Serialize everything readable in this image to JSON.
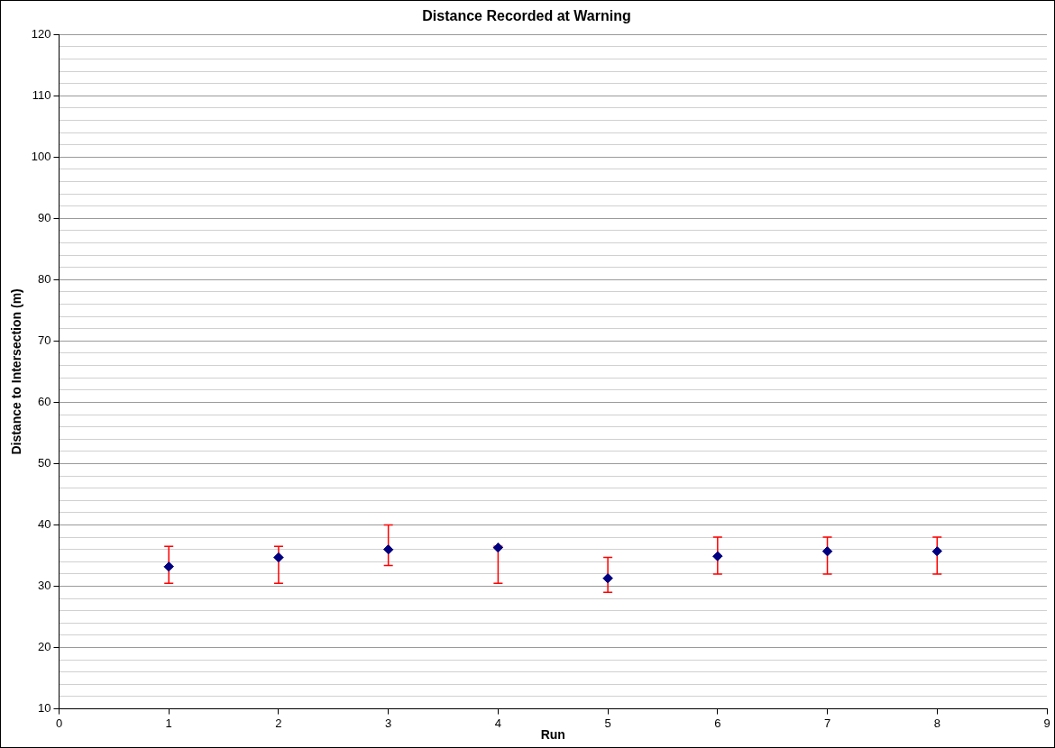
{
  "chart_data": {
    "type": "scatter",
    "title": "Distance Recorded at Warning",
    "xlabel": "Run",
    "ylabel": "Distance to Intersection (m)",
    "x": [
      1,
      2,
      3,
      4,
      5,
      6,
      7,
      8
    ],
    "values": [
      33.2,
      34.7,
      36,
      36.3,
      31.3,
      34.9,
      35.7,
      35.7
    ],
    "errors": [
      [
        30.5,
        36.5
      ],
      [
        30.5,
        36.5
      ],
      [
        33.4,
        40
      ],
      [
        30.5,
        36.5
      ],
      [
        29,
        34.7
      ],
      [
        32,
        38
      ],
      [
        32,
        38
      ],
      [
        32,
        38
      ]
    ],
    "color": "#000080",
    "marker": "diamond",
    "grid": "y",
    "legend": false,
    "xlim": [
      0,
      9
    ],
    "xticks": [
      0,
      1,
      2,
      3,
      4,
      5,
      6,
      7,
      8,
      9
    ],
    "ylim": [
      10,
      120
    ],
    "yticks": [
      10,
      {
        "value": 12,
        "label": null
      },
      {
        "value": 14,
        "label": null
      },
      {
        "value": 16,
        "label": null
      },
      {
        "value": 18,
        "label": null
      },
      20,
      {
        "value": 22,
        "label": null
      },
      {
        "value": 24,
        "label": null
      },
      {
        "value": 26,
        "label": null
      },
      {
        "value": 28,
        "label": null
      },
      30,
      {
        "value": 32,
        "label": null
      },
      {
        "value": 34,
        "label": null
      },
      {
        "value": 36,
        "label": null
      },
      {
        "value": 38,
        "label": null
      },
      40,
      {
        "value": 42,
        "label": null
      },
      {
        "value": 44,
        "label": null
      },
      {
        "value": 46,
        "label": null
      },
      {
        "value": 48,
        "label": null
      },
      50,
      {
        "value": 52,
        "label": null
      },
      {
        "value": 54,
        "label": null
      },
      {
        "value": 56,
        "label": null
      },
      {
        "value": 58,
        "label": null
      },
      60,
      {
        "value": 62,
        "label": null
      },
      {
        "value": 64,
        "label": null
      },
      {
        "value": 66,
        "label": null
      },
      {
        "value": 68,
        "label": null
      },
      70,
      {
        "value": 72,
        "label": null
      },
      {
        "value": 74,
        "label": null
      },
      {
        "value": 76,
        "label": null
      },
      {
        "value": 78,
        "label": null
      },
      80,
      {
        "value": 82,
        "label": null
      },
      {
        "value": 84,
        "label": null
      },
      {
        "value": 86,
        "label": null
      },
      {
        "value": 88,
        "label": null
      },
      90,
      {
        "value": 92,
        "label": null
      },
      {
        "value": 94,
        "label": null
      },
      {
        "value": 96,
        "label": null
      },
      {
        "value": 98,
        "label": null
      },
      100,
      {
        "value": 102,
        "label": null
      },
      {
        "value": 104,
        "label": null
      },
      {
        "value": 106,
        "label": null
      },
      {
        "value": 108,
        "label": null
      },
      110,
      {
        "value": 112,
        "label": null
      },
      {
        "value": 114,
        "label": null
      },
      {
        "value": 116,
        "label": null
      },
      {
        "value": 118,
        "label": null
      },
      120
    ]
  }
}
